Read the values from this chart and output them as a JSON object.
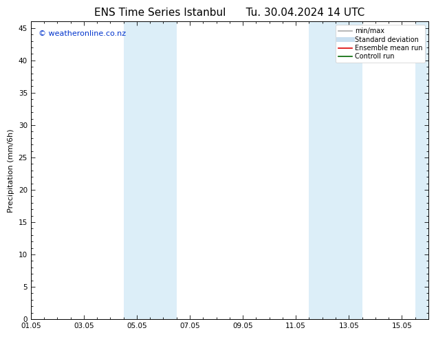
{
  "title": "ENS Time Series Istanbul      Tu. 30.04.2024 14 UTC",
  "ylabel": "Precipitation (mm/6h)",
  "ylim": [
    0,
    46
  ],
  "yticks": [
    0,
    5,
    10,
    15,
    20,
    25,
    30,
    35,
    40,
    45
  ],
  "xtick_labels": [
    "01.05",
    "03.05",
    "05.05",
    "07.05",
    "09.05",
    "11.05",
    "13.05",
    "15.05"
  ],
  "xtick_positions": [
    0,
    2,
    4,
    6,
    8,
    10,
    12,
    14
  ],
  "xlim": [
    0,
    15
  ],
  "shaded_regions": [
    {
      "x_start": 3.5,
      "x_end": 4.5
    },
    {
      "x_start": 4.5,
      "x_end": 5.5
    },
    {
      "x_start": 10.5,
      "x_end": 11.5
    },
    {
      "x_start": 11.5,
      "x_end": 12.5
    },
    {
      "x_start": 14.5,
      "x_end": 15.0
    }
  ],
  "shaded_color": "#dceef8",
  "background_color": "#ffffff",
  "watermark_text": "© weatheronline.co.nz",
  "watermark_color": "#0033cc",
  "watermark_fontsize": 8,
  "legend_items": [
    {
      "label": "min/max",
      "color": "#aaaaaa",
      "lw": 1.2,
      "style": "solid"
    },
    {
      "label": "Standard deviation",
      "color": "#c8dff0",
      "lw": 5,
      "style": "solid"
    },
    {
      "label": "Ensemble mean run",
      "color": "#dd0000",
      "lw": 1.2,
      "style": "solid"
    },
    {
      "label": "Controll run",
      "color": "#006600",
      "lw": 1.2,
      "style": "solid"
    }
  ],
  "title_fontsize": 11,
  "axis_fontsize": 8,
  "tick_fontsize": 7.5
}
